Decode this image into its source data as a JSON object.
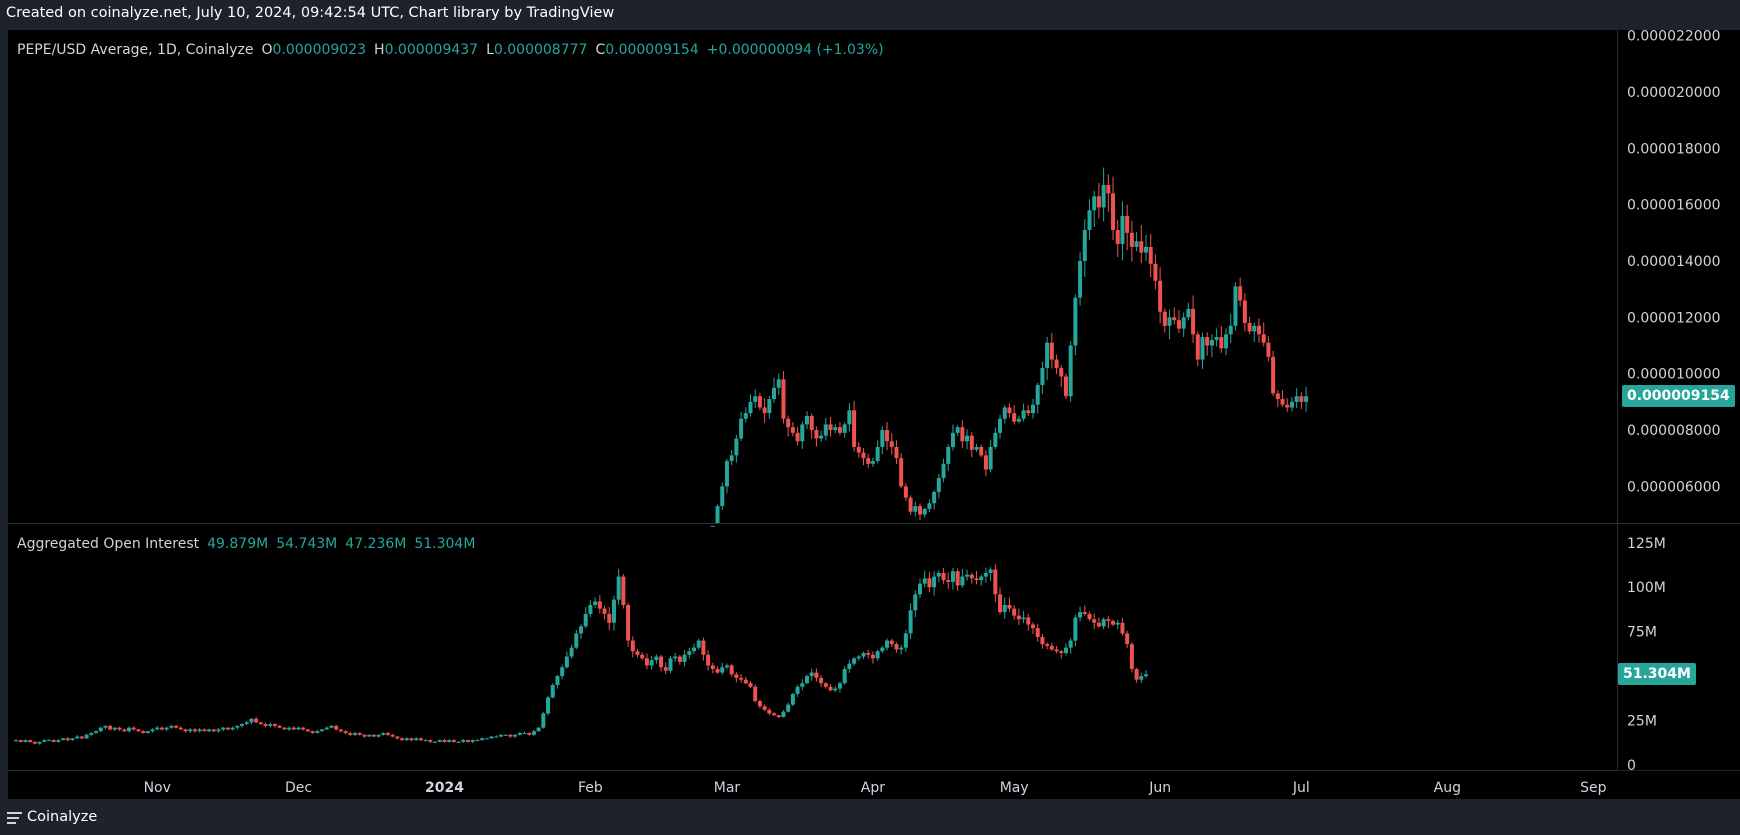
{
  "header": {
    "text": "Created on coinalyze.net, July 10, 2024, 09:42:54 UTC, Chart library by TradingView"
  },
  "footer": {
    "brand": "Coinalyze"
  },
  "price_legend": {
    "symbol": "PEPE/USD Average, 1D, Coinalyze",
    "o_label": "O",
    "o_value": "0.000009023",
    "h_label": "H",
    "h_value": "0.000009437",
    "l_label": "L",
    "l_value": "0.000008777",
    "c_label": "C",
    "c_value": "0.000009154",
    "change": "+0.000000094 (+1.03%)"
  },
  "oi_legend": {
    "title": "Aggregated Open Interest",
    "o_value": "49.879M",
    "h_value": "54.743M",
    "l_value": "47.236M",
    "c_value": "51.304M"
  },
  "price_last_label": "0.000009154",
  "oi_last_label": "51.304M",
  "colors": {
    "background": "#000000",
    "frame": "#1e222d",
    "up": "#26a69a",
    "down": "#ef5350",
    "axis_text": "#d1d4dc",
    "separator": "#2a2e39"
  },
  "chart_data": [
    {
      "type": "candlestick",
      "title": "PEPE/USD Average, 1D, Coinalyze",
      "interval": "1D",
      "y_tick_labels": [
        "0.000006000",
        "0.000008000",
        "0.000010000",
        "0.000012000",
        "0.000014000",
        "0.000016000",
        "0.000018000",
        "0.000020000",
        "0.000022000"
      ],
      "ylim": [
        4.7e-06,
        2.22e-05
      ],
      "x_tick_labels": [
        "Nov",
        "Dec",
        "2024",
        "Feb",
        "Mar",
        "Apr",
        "May",
        "Jun",
        "Jul",
        "Aug",
        "Sep"
      ],
      "x_tick_dates": [
        "2023-11-01",
        "2023-12-01",
        "2024-01-01",
        "2024-02-01",
        "2024-03-01",
        "2024-04-01",
        "2024-05-01",
        "2024-06-01",
        "2024-07-01",
        "2024-08-01",
        "2024-09-01"
      ],
      "x_range": [
        "2023-10-02",
        "2024-09-02"
      ],
      "date_start": "2024-02-27",
      "close": [
        4.6e-06,
        5.3e-06,
        6e-06,
        6.9e-06,
        7.1e-06,
        7.7e-06,
        8.4e-06,
        8.6e-06,
        9e-06,
        9.2e-06,
        8.8e-06,
        8.6e-06,
        9.1e-06,
        9.5e-06,
        9.8e-06,
        8.4e-06,
        8.1e-06,
        7.9e-06,
        7.6e-06,
        8.2e-06,
        8.5e-06,
        8e-06,
        7.7e-06,
        7.8e-06,
        8.2e-06,
        8e-06,
        8.1e-06,
        7.9e-06,
        8.2e-06,
        8.7e-06,
        7.4e-06,
        7.2e-06,
        7e-06,
        6.8e-06,
        6.9e-06,
        7.4e-06,
        8e-06,
        7.6e-06,
        7.4e-06,
        7e-06,
        6e-06,
        5.6e-06,
        5.1e-06,
        5.3e-06,
        5e-06,
        5.2e-06,
        5.4e-06,
        5.8e-06,
        6.3e-06,
        6.8e-06,
        7.4e-06,
        7.9e-06,
        8.1e-06,
        7.6e-06,
        7.8e-06,
        7.3e-06,
        7.4e-06,
        7.1e-06,
        6.6e-06,
        7.4e-06,
        7.9e-06,
        8.4e-06,
        8.8e-06,
        8.6e-06,
        8.3e-06,
        8.4e-06,
        8.7e-06,
        8.6e-06,
        8.9e-06,
        9.6e-06,
        1.02e-05,
        1.11e-05,
        1.05e-05,
        1.02e-05,
        9.9e-06,
        9.2e-06,
        1.1e-05,
        1.27e-05,
        1.4e-05,
        1.51e-05,
        1.58e-05,
        1.63e-05,
        1.59e-05,
        1.67e-05,
        1.64e-05,
        1.51e-05,
        1.46e-05,
        1.56e-05,
        1.5e-05,
        1.45e-05,
        1.47e-05,
        1.43e-05,
        1.45e-05,
        1.39e-05,
        1.33e-05,
        1.22e-05,
        1.17e-05,
        1.2e-05,
        1.19e-05,
        1.16e-05,
        1.2e-05,
        1.23e-05,
        1.14e-05,
        1.05e-05,
        1.13e-05,
        1.1e-05,
        1.12e-05,
        1.13e-05,
        1.09e-05,
        1.14e-05,
        1.17e-05,
        1.31e-05,
        1.26e-05,
        1.18e-05,
        1.15e-05,
        1.17e-05,
        1.14e-05,
        1.11e-05,
        1.06e-05,
        9.3e-06,
        9.1e-06,
        8.9e-06,
        8.8e-06,
        9e-06,
        9.2e-06,
        9e-06,
        9.2e-06
      ],
      "last_close": "0.000009154"
    },
    {
      "type": "candlestick",
      "title": "Aggregated Open Interest",
      "y_tick_labels": [
        "0",
        "25M",
        "50M",
        "75M",
        "100M",
        "125M"
      ],
      "ylim": [
        0,
        126
      ],
      "unit": "M",
      "x_range": [
        "2023-10-02",
        "2024-09-02"
      ],
      "date_start": "2023-10-02",
      "close": [
        14,
        13,
        14,
        13,
        12,
        13,
        14,
        14,
        13,
        14,
        15,
        14,
        15,
        16,
        15,
        17,
        18,
        19,
        21,
        22,
        20,
        21,
        20,
        19,
        21,
        20,
        19,
        18,
        19,
        20,
        21,
        20,
        21,
        22,
        21,
        20,
        19,
        20,
        19,
        20,
        19,
        20,
        19,
        20,
        21,
        20,
        21,
        22,
        23,
        24,
        26,
        24,
        23,
        22,
        23,
        22,
        21,
        20,
        21,
        20,
        21,
        20,
        19,
        18,
        19,
        20,
        21,
        22,
        20,
        19,
        18,
        17,
        18,
        17,
        16,
        17,
        16,
        17,
        18,
        17,
        16,
        15,
        14,
        15,
        14,
        15,
        14,
        14,
        13,
        13,
        14,
        13,
        14,
        13,
        13,
        14,
        13,
        14,
        14,
        15,
        15,
        16,
        16,
        17,
        17,
        16,
        17,
        18,
        18,
        17,
        19,
        21,
        29,
        38,
        45,
        50,
        55,
        61,
        66,
        74,
        78,
        85,
        90,
        92,
        88,
        85,
        80,
        93,
        106,
        90,
        70,
        64,
        62,
        60,
        56,
        59,
        61,
        55,
        53,
        60,
        61,
        58,
        62,
        64,
        66,
        70,
        62,
        56,
        54,
        52,
        55,
        56,
        51,
        49,
        48,
        46,
        44,
        36,
        33,
        31,
        29,
        28,
        27,
        30,
        34,
        40,
        44,
        46,
        50,
        52,
        49,
        46,
        44,
        42,
        43,
        46,
        54,
        57,
        60,
        61,
        63,
        62,
        60,
        64,
        66,
        70,
        68,
        65,
        66,
        74,
        87,
        96,
        102,
        105,
        100,
        106,
        108,
        104,
        103,
        109,
        101,
        106,
        107,
        105,
        104,
        106,
        108,
        110,
        96,
        86,
        90,
        88,
        84,
        82,
        83,
        79,
        77,
        72,
        68,
        67,
        65,
        64,
        63,
        66,
        70,
        83,
        86,
        85,
        82,
        80,
        78,
        82,
        81,
        79,
        80,
        74,
        68,
        54,
        48,
        50,
        51
      ],
      "last_close": "51.304M"
    }
  ]
}
